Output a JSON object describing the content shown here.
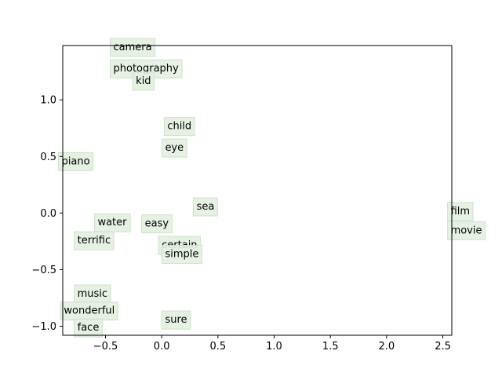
{
  "chart_data": {
    "type": "scatter",
    "title": "",
    "xlabel": "",
    "ylabel": "",
    "xlim": [
      -0.88,
      2.58
    ],
    "ylim": [
      -1.08,
      1.48
    ],
    "xticks": [
      -0.5,
      0.0,
      0.5,
      1.0,
      1.5,
      2.0,
      2.5
    ],
    "xtick_labels": [
      "−0.5",
      "0.0",
      "0.5",
      "1.0",
      "1.5",
      "2.0",
      "2.5"
    ],
    "yticks": [
      -1.0,
      -0.5,
      0.0,
      0.5,
      1.0
    ],
    "ytick_labels": [
      "−1.0",
      "−0.5",
      "0.0",
      "0.5",
      "1.0"
    ],
    "grid": false,
    "label_box_color": "#e3efe1",
    "label_box_edge": "#cfe0cc",
    "points": [
      {
        "label": "camera",
        "x": -0.43,
        "y": 1.44
      },
      {
        "label": "photography",
        "x": -0.43,
        "y": 1.25
      },
      {
        "label": "kid",
        "x": -0.23,
        "y": 1.14
      },
      {
        "label": "child",
        "x": 0.05,
        "y": 0.74
      },
      {
        "label": "eye",
        "x": 0.03,
        "y": 0.55
      },
      {
        "label": "piano",
        "x": -0.89,
        "y": 0.43
      },
      {
        "label": "sea",
        "x": 0.31,
        "y": 0.03
      },
      {
        "label": "film",
        "x": 2.57,
        "y": -0.01
      },
      {
        "label": "movie",
        "x": 2.57,
        "y": -0.18
      },
      {
        "label": "water",
        "x": -0.57,
        "y": -0.11
      },
      {
        "label": "easy",
        "x": -0.15,
        "y": -0.12
      },
      {
        "label": "terrific",
        "x": -0.75,
        "y": -0.27
      },
      {
        "label": "certain",
        "x": 0.0,
        "y": -0.31
      },
      {
        "label": "simple",
        "x": 0.03,
        "y": -0.39
      },
      {
        "label": "music",
        "x": -0.75,
        "y": -0.74
      },
      {
        "label": "wonderful",
        "x": -0.87,
        "y": -0.89
      },
      {
        "label": "face",
        "x": -0.75,
        "y": -1.04
      },
      {
        "label": "sure",
        "x": 0.03,
        "y": -0.97
      }
    ]
  }
}
